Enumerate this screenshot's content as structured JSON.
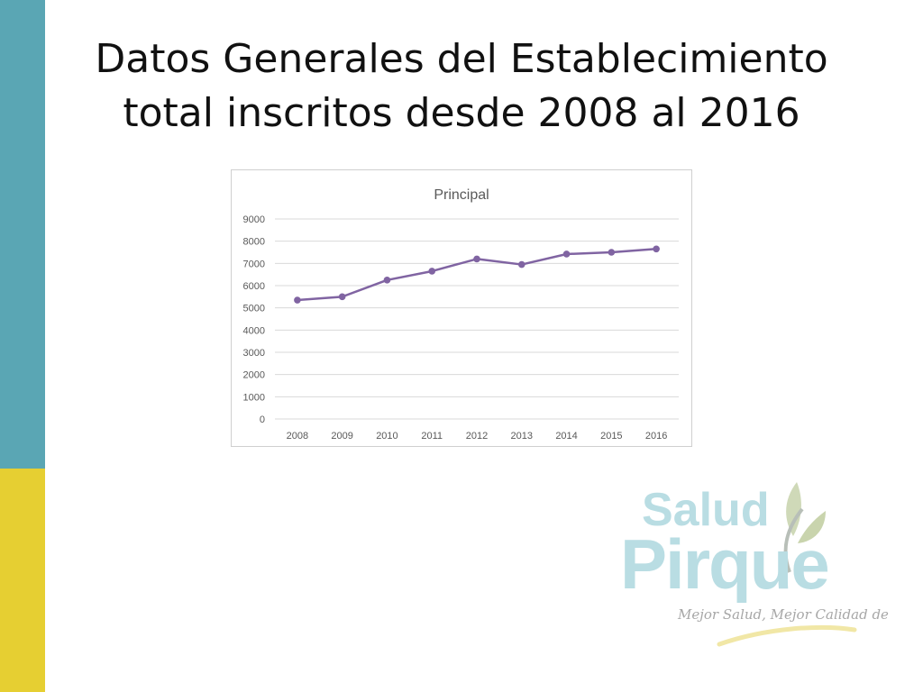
{
  "slide": {
    "title_line1": "Datos Generales del Establecimiento",
    "title_line2": "total inscritos desde 2008 al 2016"
  },
  "colors": {
    "sidebar_top": "#5aa6b4",
    "sidebar_bottom": "#e6cf32",
    "series": "#8064a2",
    "grid": "#d9d9d9",
    "axis_text": "#595959"
  },
  "chart_data": {
    "type": "line",
    "title": "Principal",
    "xlabel": "",
    "ylabel": "",
    "categories": [
      "2008",
      "2009",
      "2010",
      "2011",
      "2012",
      "2013",
      "2014",
      "2015",
      "2016"
    ],
    "series": [
      {
        "values": [
          5350,
          5500,
          6250,
          6650,
          7200,
          6950,
          7420,
          7500,
          7650
        ]
      }
    ],
    "ylim": [
      0,
      9000
    ],
    "yticks": [
      0,
      1000,
      2000,
      3000,
      4000,
      5000,
      6000,
      7000,
      8000,
      9000
    ],
    "grid": true,
    "legend": "none"
  },
  "logo": {
    "line1": "Salud",
    "line2": "Pirque",
    "tagline": "Mejor Salud, Mejor Calidad de Vida."
  }
}
